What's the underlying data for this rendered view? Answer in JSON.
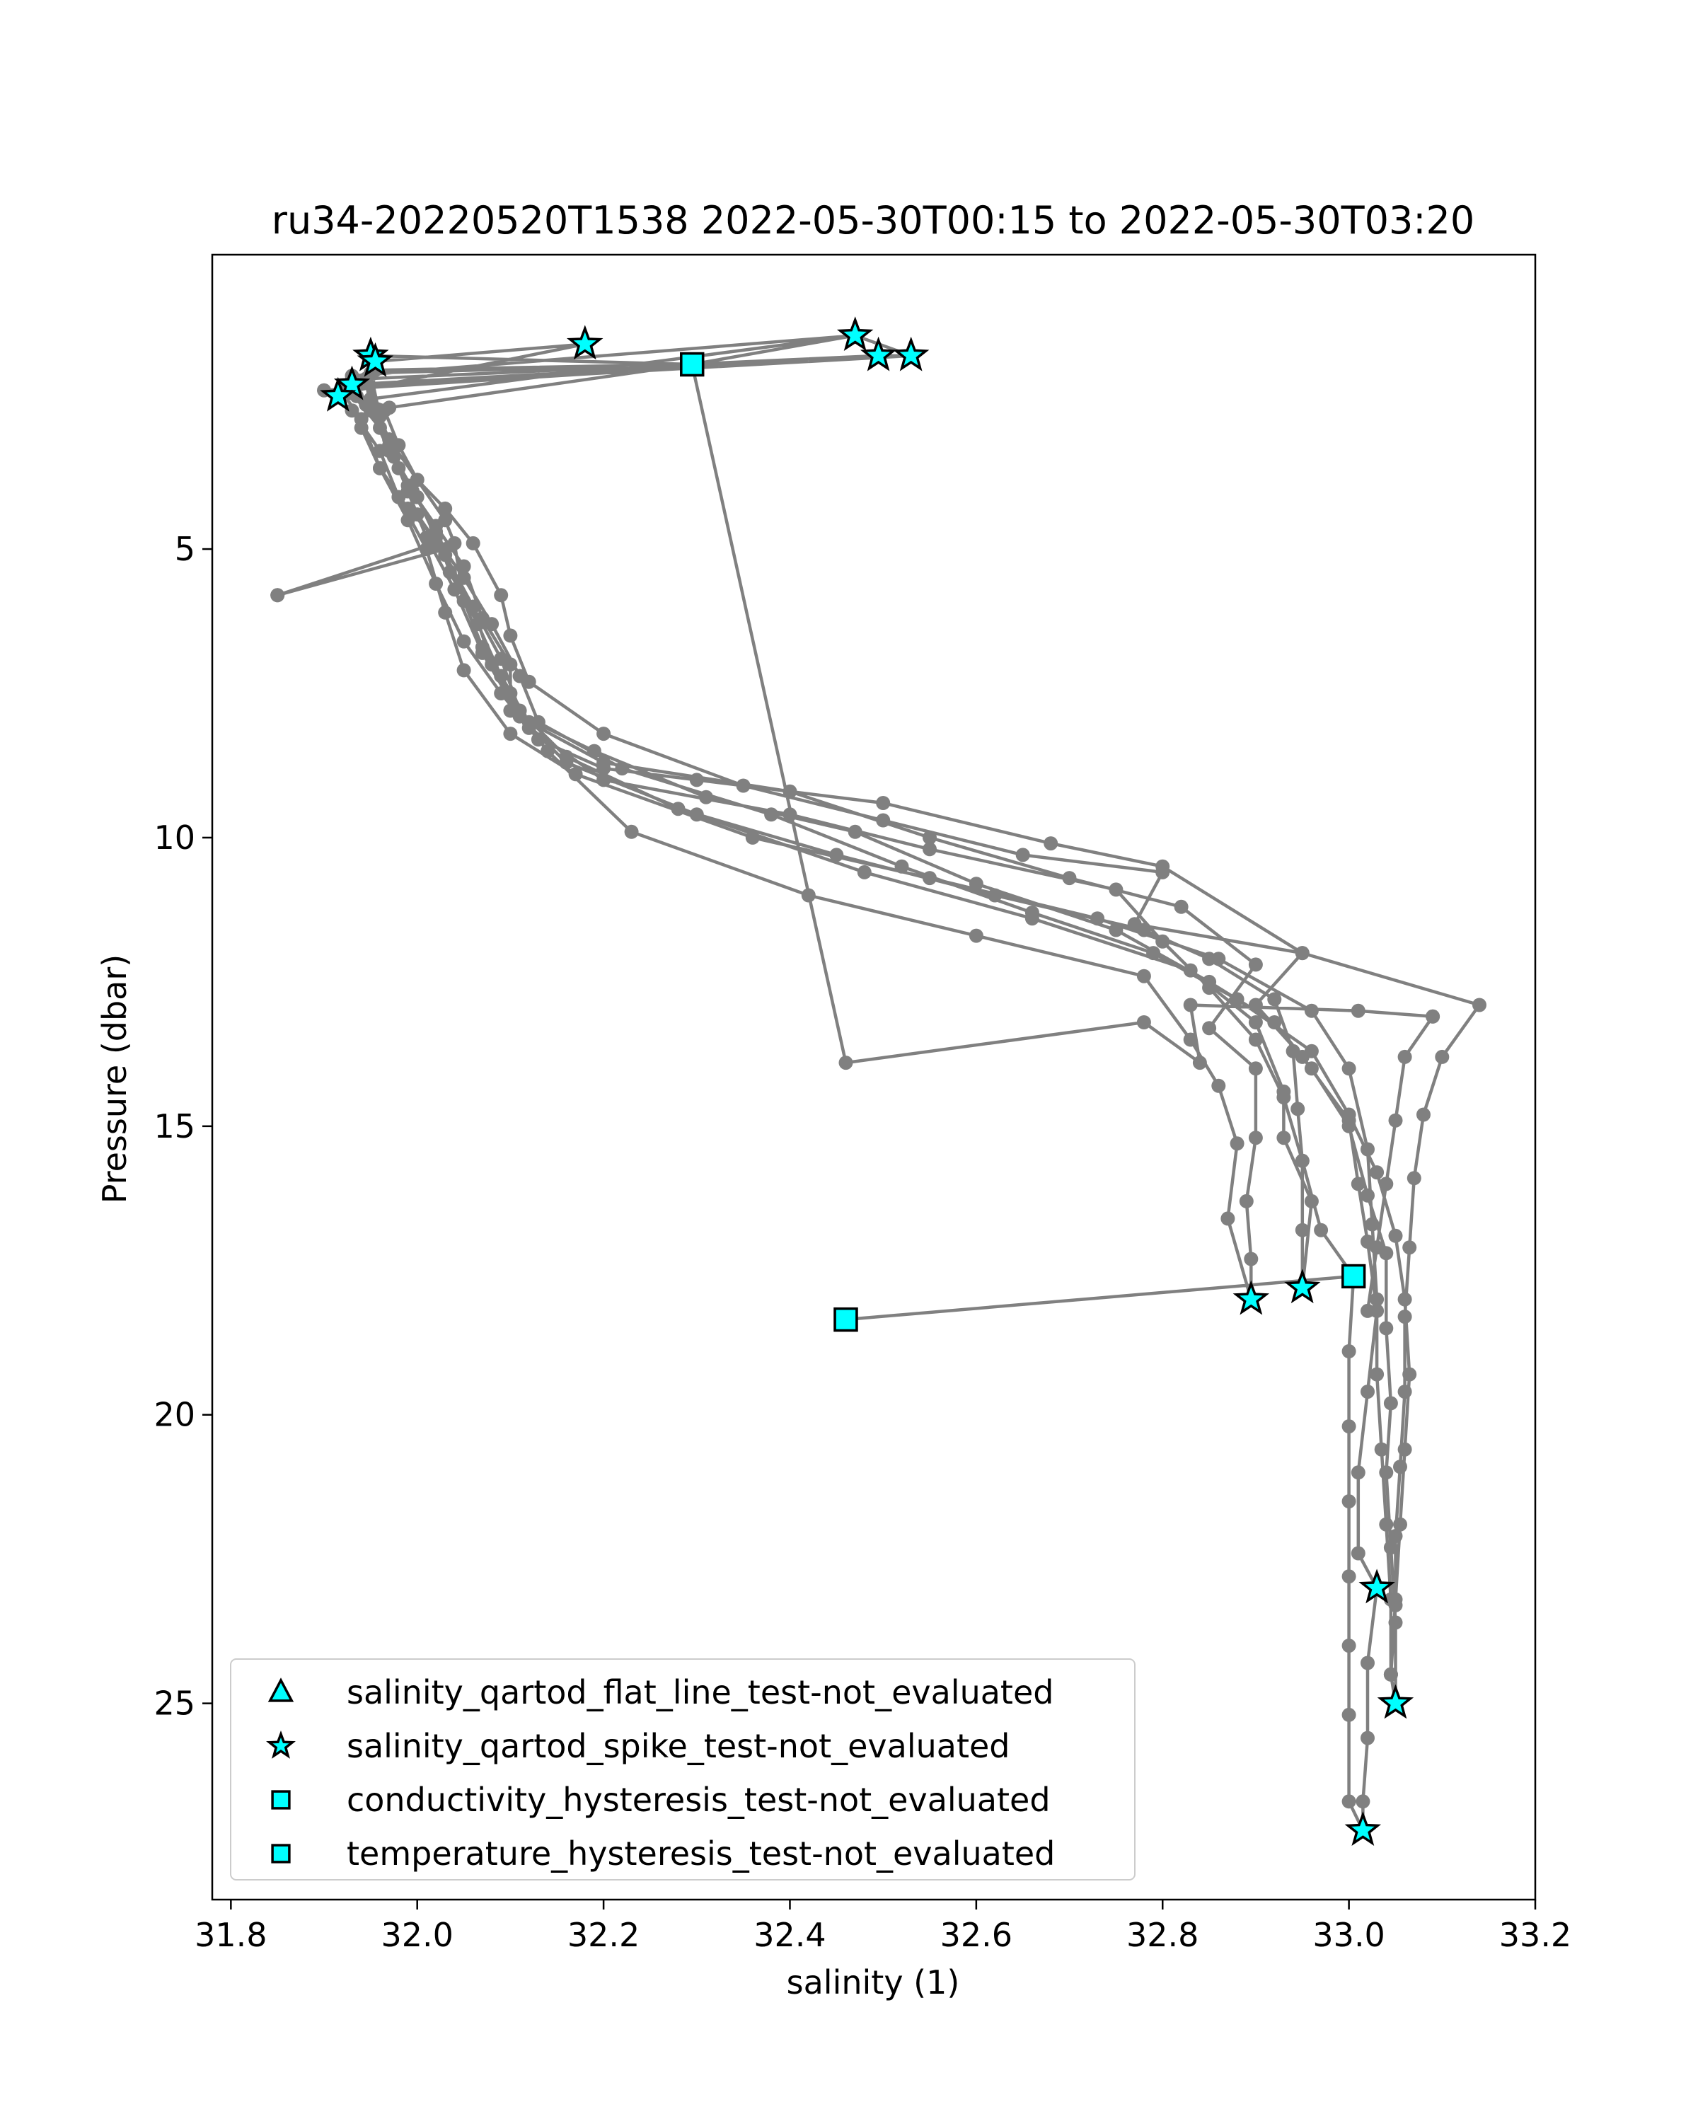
{
  "chart_data": {
    "type": "scatter",
    "title": "ru34-20220520T1538 2022-05-30T00:15 to 2022-05-30T03:20",
    "xlabel": "salinity (1)",
    "ylabel": "Pressure (dbar)",
    "xlim": [
      31.78,
      33.2
    ],
    "ylim": [
      28.4,
      -0.1
    ],
    "y_inverted": true,
    "grid": false,
    "xticks": [
      "31.8",
      "32.0",
      "32.2",
      "32.4",
      "32.6",
      "32.8",
      "33.0",
      "33.2"
    ],
    "yticks": [
      "5",
      "10",
      "15",
      "20",
      "25"
    ],
    "xtick_values": [
      31.8,
      32.0,
      32.2,
      32.4,
      32.6,
      32.8,
      33.0,
      33.2
    ],
    "ytick_values": [
      5,
      10,
      15,
      20,
      25
    ],
    "line_color": "#808080",
    "marker_color": "#00ffff",
    "legend_position": "lower-left",
    "profile": [
      [
        32.295,
        1.8
      ],
      [
        32.53,
        1.65
      ],
      [
        31.925,
        2.2
      ],
      [
        31.965,
        2.6
      ],
      [
        31.98,
        3.2
      ],
      [
        32.0,
        3.8
      ],
      [
        32.03,
        4.3
      ],
      [
        32.06,
        4.9
      ],
      [
        32.09,
        5.8
      ],
      [
        32.1,
        6.5
      ],
      [
        32.12,
        7.3
      ],
      [
        32.2,
        8.2
      ],
      [
        32.35,
        9.1
      ],
      [
        32.5,
        9.7
      ],
      [
        32.65,
        10.3
      ],
      [
        32.8,
        10.6
      ],
      [
        32.77,
        11.5
      ],
      [
        32.95,
        12.0
      ],
      [
        32.9,
        12.9
      ],
      [
        32.95,
        13.8
      ],
      [
        33.0,
        14.9
      ],
      [
        33.01,
        16.0
      ],
      [
        33.02,
        17.0
      ],
      [
        33.03,
        18.2
      ],
      [
        33.02,
        19.6
      ],
      [
        33.01,
        21.0
      ],
      [
        33.01,
        22.4
      ],
      [
        33.03,
        23.0
      ],
      [
        33.02,
        24.3
      ],
      [
        33.02,
        25.6
      ],
      [
        33.015,
        26.7
      ],
      [
        33.015,
        27.2
      ],
      [
        33.015,
        27.2
      ],
      [
        33.0,
        26.7
      ],
      [
        33.0,
        25.2
      ],
      [
        33.0,
        24.0
      ],
      [
        33.0,
        22.8
      ],
      [
        33.0,
        21.5
      ],
      [
        33.0,
        20.2
      ],
      [
        33.0,
        18.9
      ],
      [
        33.005,
        17.6
      ],
      [
        32.46,
        18.35
      ],
      [
        32.46,
        18.35
      ],
      [
        33.005,
        17.6
      ],
      [
        32.97,
        16.8
      ],
      [
        32.95,
        15.6
      ],
      [
        32.93,
        14.5
      ],
      [
        32.9,
        13.5
      ],
      [
        32.85,
        12.6
      ],
      [
        32.8,
        11.8
      ],
      [
        32.75,
        10.9
      ],
      [
        32.55,
        10.2
      ],
      [
        32.4,
        9.6
      ],
      [
        32.2,
        9.0
      ],
      [
        32.12,
        8.1
      ],
      [
        32.08,
        7.0
      ],
      [
        32.06,
        6.0
      ],
      [
        32.02,
        4.9
      ],
      [
        31.85,
        5.8
      ],
      [
        31.85,
        5.8
      ],
      [
        32.03,
        5.0
      ],
      [
        31.99,
        4.3
      ],
      [
        31.96,
        3.6
      ],
      [
        31.94,
        2.9
      ],
      [
        31.95,
        2.4
      ],
      [
        32.47,
        1.3
      ],
      [
        32.47,
        1.3
      ],
      [
        31.93,
        2.0
      ],
      [
        31.945,
        2.5
      ],
      [
        31.97,
        3.1
      ],
      [
        31.99,
        3.9
      ],
      [
        32.02,
        4.6
      ],
      [
        32.05,
        5.3
      ],
      [
        32.07,
        6.2
      ],
      [
        32.1,
        7.0
      ],
      [
        32.1,
        7.8
      ],
      [
        32.19,
        8.5
      ],
      [
        32.31,
        9.3
      ],
      [
        32.47,
        9.9
      ],
      [
        32.6,
        10.8
      ],
      [
        32.75,
        11.6
      ],
      [
        32.85,
        12.5
      ],
      [
        32.92,
        13.2
      ],
      [
        32.96,
        14.0
      ],
      [
        33.0,
        15.0
      ],
      [
        33.02,
        16.2
      ],
      [
        33.04,
        17.2
      ],
      [
        33.04,
        18.5
      ],
      [
        33.045,
        19.8
      ],
      [
        33.04,
        21.0
      ],
      [
        33.045,
        22.3
      ],
      [
        33.05,
        23.6
      ],
      [
        33.05,
        25.0
      ],
      [
        33.05,
        25.0
      ],
      [
        33.045,
        24.5
      ],
      [
        33.045,
        23.2
      ],
      [
        33.04,
        21.9
      ],
      [
        33.035,
        20.6
      ],
      [
        33.03,
        19.3
      ],
      [
        33.03,
        18.0
      ],
      [
        33.025,
        16.7
      ],
      [
        33.02,
        15.4
      ],
      [
        33.0,
        14.0
      ],
      [
        32.96,
        13.0
      ],
      [
        32.86,
        12.1
      ],
      [
        32.73,
        11.4
      ],
      [
        32.55,
        10.7
      ],
      [
        32.36,
        10.0
      ],
      [
        32.17,
        8.9
      ],
      [
        32.1,
        8.2
      ],
      [
        32.05,
        7.1
      ],
      [
        32.03,
        6.1
      ],
      [
        32.01,
        5.0
      ],
      [
        31.98,
        4.1
      ],
      [
        31.96,
        3.3
      ],
      [
        31.93,
        2.6
      ],
      [
        31.9,
        2.25
      ],
      [
        32.495,
        1.65
      ],
      [
        32.495,
        1.65
      ],
      [
        31.945,
        2.05
      ],
      [
        31.95,
        2.6
      ],
      [
        31.97,
        3.3
      ],
      [
        31.995,
        4.0
      ],
      [
        32.02,
        4.7
      ],
      [
        32.035,
        5.4
      ],
      [
        32.065,
        6.3
      ],
      [
        32.09,
        7.2
      ],
      [
        32.12,
        8.0
      ],
      [
        32.2,
        8.7
      ],
      [
        32.4,
        9.2
      ],
      [
        32.55,
        10.0
      ],
      [
        32.7,
        10.7
      ],
      [
        32.82,
        11.2
      ],
      [
        32.9,
        12.2
      ],
      [
        32.85,
        13.3
      ],
      [
        32.9,
        14.0
      ],
      [
        32.9,
        15.2
      ],
      [
        32.89,
        16.3
      ],
      [
        32.895,
        17.3
      ],
      [
        32.895,
        18.0
      ],
      [
        32.895,
        18.0
      ],
      [
        32.87,
        16.6
      ],
      [
        32.88,
        15.3
      ],
      [
        32.86,
        14.3
      ],
      [
        32.83,
        13.5
      ],
      [
        32.78,
        12.4
      ],
      [
        32.6,
        11.7
      ],
      [
        32.42,
        11.0
      ],
      [
        32.23,
        9.9
      ],
      [
        32.14,
        8.5
      ],
      [
        32.09,
        7.5
      ],
      [
        32.05,
        6.6
      ],
      [
        32.02,
        5.6
      ],
      [
        31.99,
        4.5
      ],
      [
        31.96,
        3.6
      ],
      [
        31.94,
        2.75
      ],
      [
        31.92,
        2.3
      ],
      [
        32.18,
        1.45
      ],
      [
        32.18,
        1.45
      ],
      [
        31.955,
        1.75
      ],
      [
        31.93,
        2.3
      ],
      [
        31.96,
        2.9
      ],
      [
        31.98,
        3.6
      ],
      [
        32.0,
        4.4
      ],
      [
        32.03,
        5.1
      ],
      [
        32.06,
        6.0
      ],
      [
        32.09,
        6.9
      ],
      [
        32.11,
        7.8
      ],
      [
        32.16,
        8.6
      ],
      [
        32.28,
        9.5
      ],
      [
        32.45,
        10.3
      ],
      [
        32.62,
        11.0
      ],
      [
        32.78,
        11.6
      ],
      [
        32.85,
        12.1
      ],
      [
        32.92,
        12.8
      ],
      [
        32.94,
        13.7
      ],
      [
        32.945,
        14.7
      ],
      [
        32.95,
        15.6
      ],
      [
        32.95,
        16.8
      ],
      [
        32.95,
        17.8
      ],
      [
        32.95,
        17.8
      ],
      [
        32.96,
        16.3
      ],
      [
        32.93,
        15.2
      ],
      [
        32.93,
        14.4
      ],
      [
        32.9,
        13.2
      ],
      [
        32.83,
        12.3
      ],
      [
        32.66,
        11.4
      ],
      [
        32.48,
        10.6
      ],
      [
        32.3,
        9.6
      ],
      [
        32.16,
        8.7
      ],
      [
        32.11,
        7.9
      ],
      [
        32.07,
        6.8
      ],
      [
        32.04,
        5.7
      ],
      [
        32.01,
        4.8
      ],
      [
        31.99,
        4.0
      ],
      [
        31.97,
        3.2
      ],
      [
        31.95,
        2.4
      ],
      [
        31.95,
        1.65
      ],
      [
        31.95,
        1.65
      ],
      [
        32.295,
        1.8
      ],
      [
        32.295,
        1.8
      ],
      [
        31.95,
        1.95
      ],
      [
        31.96,
        2.7
      ],
      [
        31.975,
        3.4
      ],
      [
        32.0,
        4.1
      ],
      [
        32.02,
        4.8
      ],
      [
        32.05,
        5.5
      ],
      [
        32.08,
        6.3
      ],
      [
        32.11,
        7.2
      ],
      [
        32.13,
        8.0
      ],
      [
        32.22,
        8.8
      ],
      [
        32.38,
        9.6
      ],
      [
        32.52,
        10.5
      ],
      [
        32.66,
        11.3
      ],
      [
        32.79,
        12.0
      ],
      [
        32.88,
        12.8
      ],
      [
        32.96,
        13.7
      ],
      [
        33.0,
        14.8
      ],
      [
        33.03,
        15.8
      ],
      [
        33.05,
        16.9
      ],
      [
        33.06,
        18.0
      ],
      [
        33.065,
        19.3
      ],
      [
        33.06,
        20.6
      ],
      [
        33.055,
        21.9
      ],
      [
        33.05,
        23.2
      ],
      [
        33.045,
        24.5
      ],
      [
        33.045,
        24.5
      ],
      [
        33.05,
        23.3
      ],
      [
        33.05,
        22.1
      ],
      [
        33.055,
        20.9
      ],
      [
        33.06,
        19.6
      ],
      [
        33.06,
        18.3
      ],
      [
        33.065,
        17.1
      ],
      [
        33.07,
        15.9
      ],
      [
        33.08,
        14.8
      ],
      [
        33.1,
        13.8
      ],
      [
        33.14,
        12.9
      ],
      [
        32.95,
        12.0
      ],
      [
        32.8,
        10.5
      ],
      [
        32.68,
        10.1
      ],
      [
        32.5,
        9.4
      ],
      [
        32.3,
        9.0
      ],
      [
        32.2,
        8.8
      ],
      [
        32.13,
        8.3
      ],
      [
        32.1,
        7.5
      ],
      [
        32.07,
        6.7
      ],
      [
        32.05,
        5.9
      ],
      [
        32.04,
        4.9
      ],
      [
        32.03,
        4.5
      ],
      [
        32.0,
        3.8
      ],
      [
        31.97,
        3.1
      ],
      [
        31.95,
        2.4
      ],
      [
        31.955,
        1.9
      ],
      [
        32.295,
        1.8
      ],
      [
        32.47,
        1.3
      ],
      [
        32.53,
        1.65
      ],
      [
        32.495,
        1.65
      ],
      [
        31.93,
        2.15
      ],
      [
        31.935,
        2.35
      ],
      [
        31.97,
        2.55
      ],
      [
        32.295,
        1.8
      ],
      [
        32.46,
        13.9
      ],
      [
        32.78,
        13.2
      ],
      [
        32.84,
        13.9
      ],
      [
        32.83,
        12.9
      ],
      [
        33.01,
        13.0
      ],
      [
        33.09,
        13.1
      ],
      [
        33.09,
        13.1
      ],
      [
        33.06,
        13.8
      ],
      [
        33.05,
        14.9
      ],
      [
        33.04,
        16.0
      ],
      [
        33.03,
        17.1
      ],
      [
        33.02,
        18.2
      ]
    ],
    "series": [
      {
        "name": "salinity_qartod_flat_line_test-not_evaluated",
        "marker": "triangle",
        "points": []
      },
      {
        "name": "salinity_qartod_spike_test-not_evaluated",
        "marker": "star",
        "points": [
          [
            31.95,
            1.65
          ],
          [
            31.955,
            1.75
          ],
          [
            32.18,
            1.45
          ],
          [
            32.47,
            1.3
          ],
          [
            32.495,
            1.65
          ],
          [
            32.53,
            1.65
          ],
          [
            31.93,
            2.15
          ],
          [
            31.915,
            2.35
          ],
          [
            32.895,
            18.0
          ],
          [
            32.95,
            17.8
          ],
          [
            33.03,
            23.0
          ],
          [
            33.05,
            25.0
          ],
          [
            33.015,
            27.2
          ]
        ]
      },
      {
        "name": "conductivity_hysteresis_test-not_evaluated",
        "marker": "square",
        "points": [
          [
            32.295,
            1.8
          ],
          [
            33.005,
            17.6
          ],
          [
            32.46,
            18.35
          ]
        ]
      },
      {
        "name": "temperature_hysteresis_test-not_evaluated",
        "marker": "square",
        "points": [
          [
            32.295,
            1.8
          ],
          [
            32.46,
            18.35
          ]
        ]
      }
    ]
  }
}
